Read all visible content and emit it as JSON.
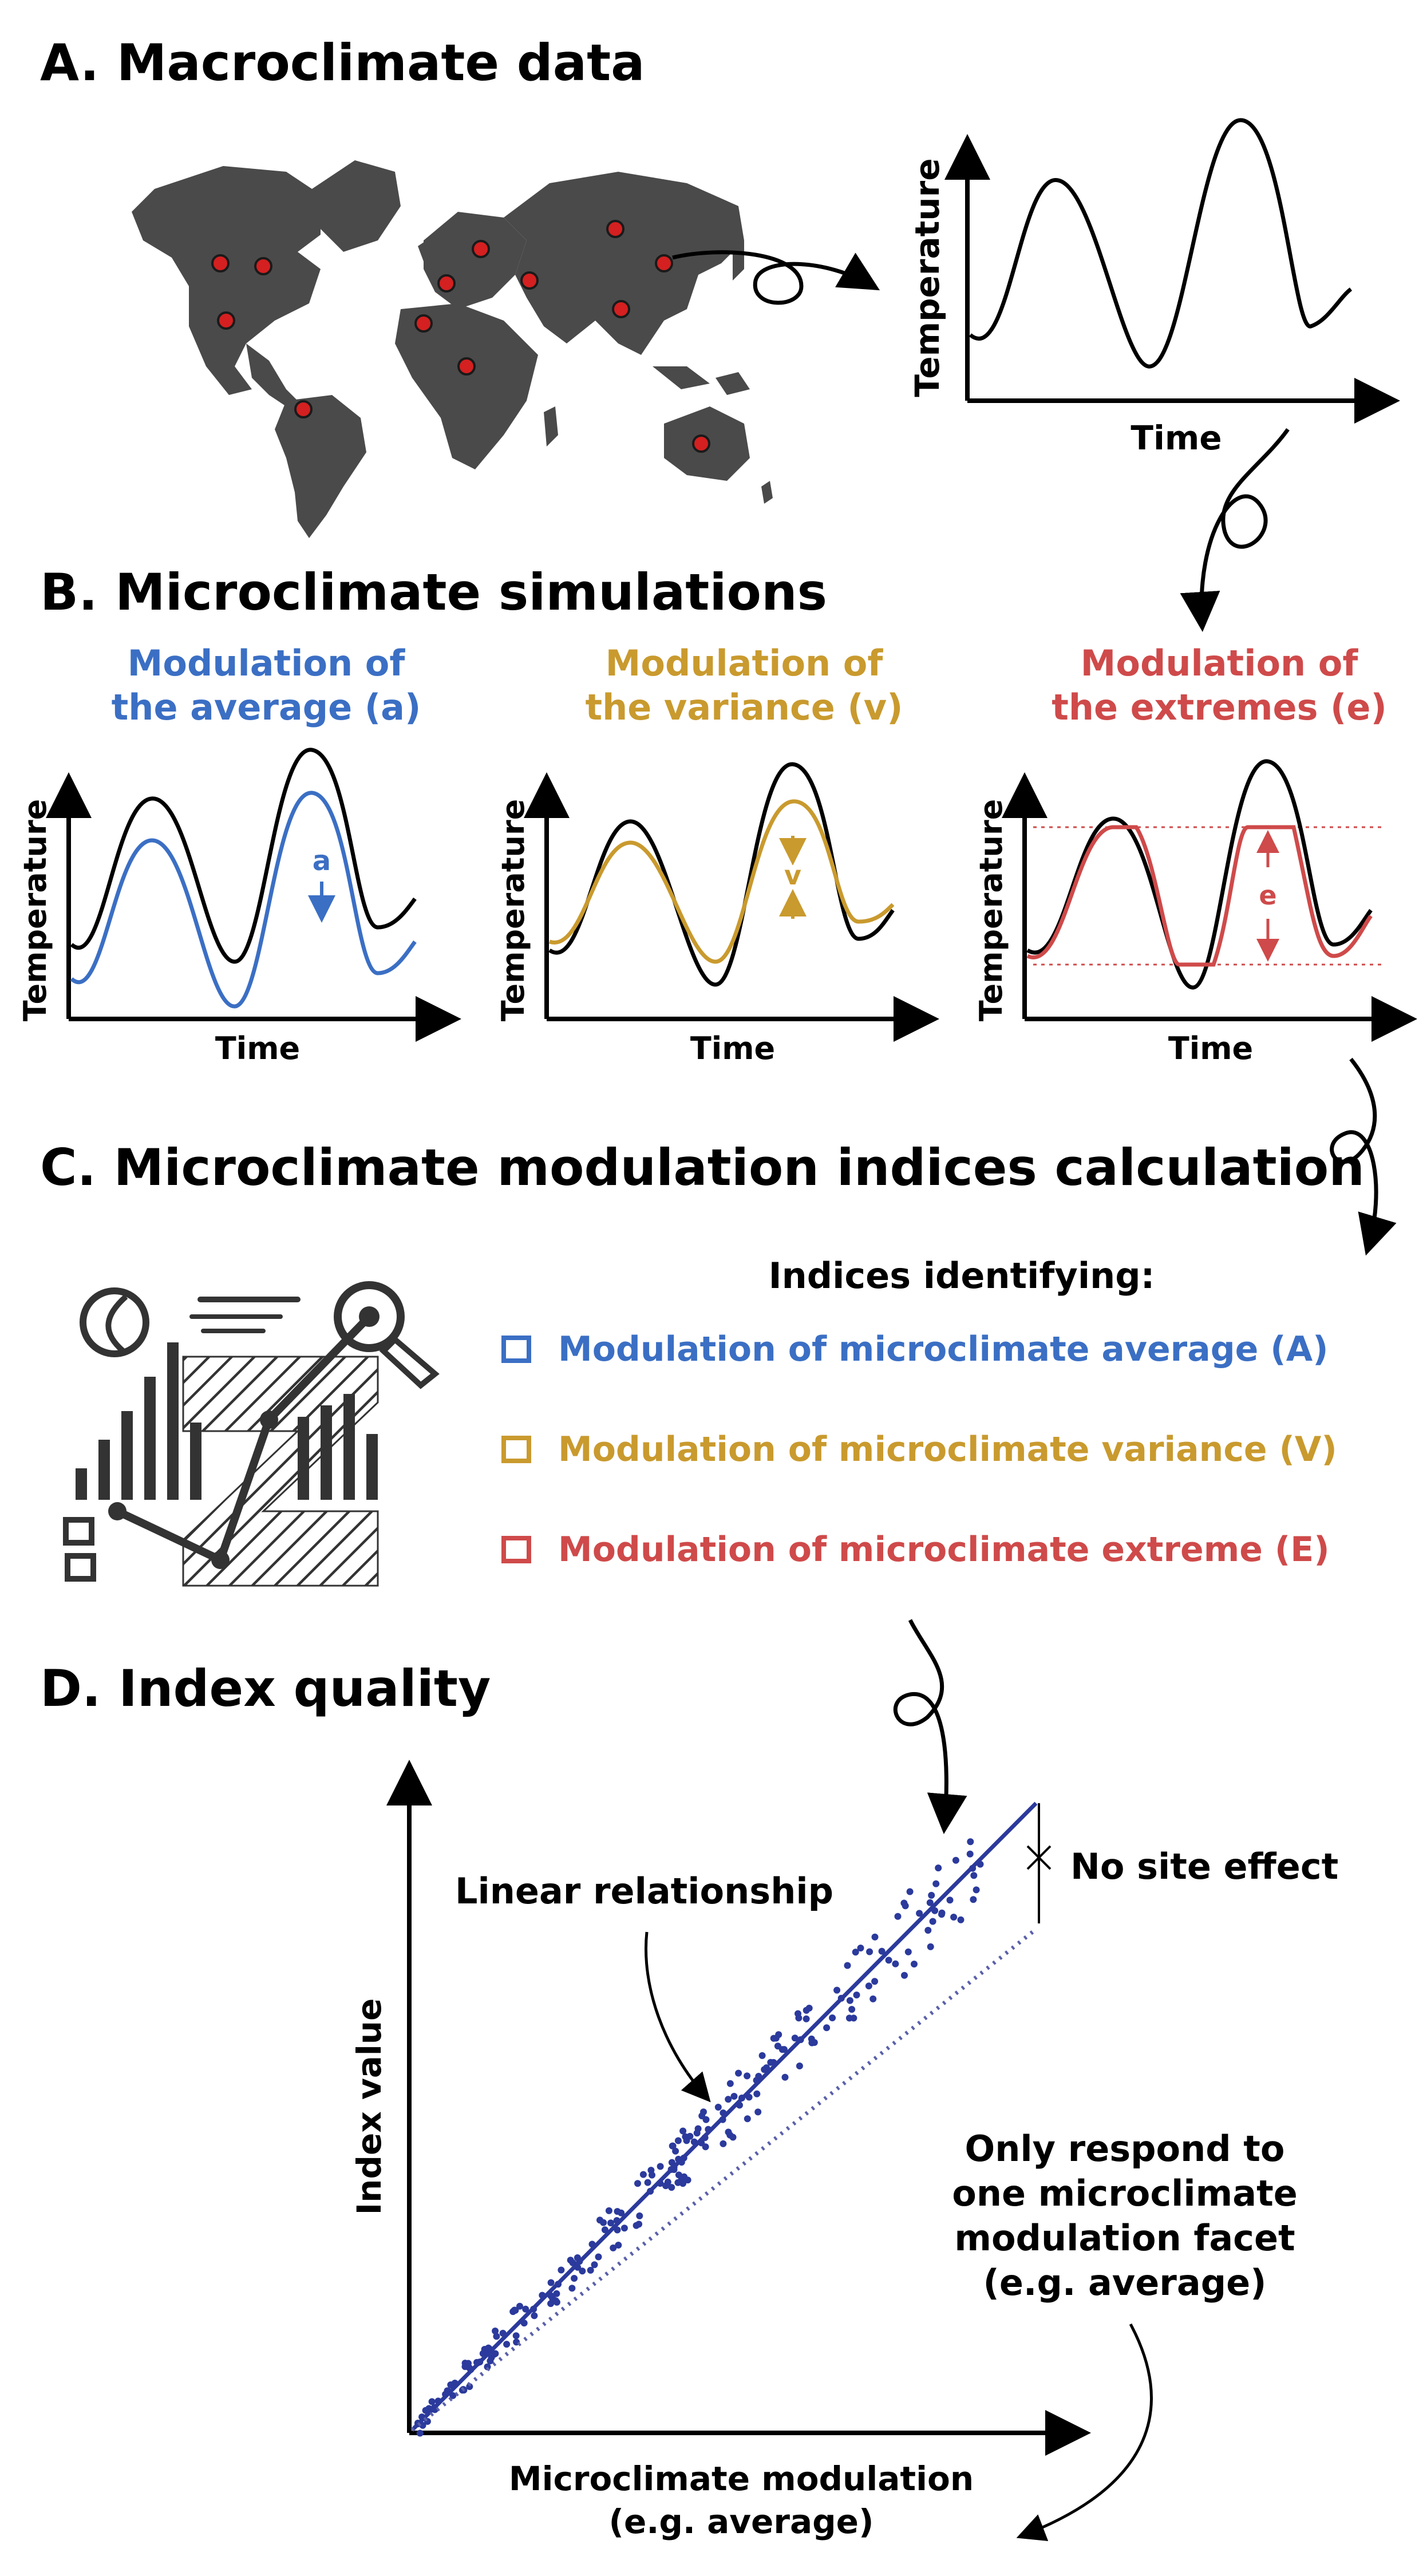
{
  "colors": {
    "average": "#3b6fc4",
    "variance": "#c99a2e",
    "extremes": "#cf4a4a",
    "scatter": "#2b3a9c",
    "map": "#4a4a4a",
    "site_dot": "#d42020"
  },
  "section_a": {
    "title": "A. Macroclimate data",
    "ylabel": "Temperature",
    "xlabel": "Time"
  },
  "section_b": {
    "title": "B. Microclimate simulations",
    "panels": [
      {
        "line1": "Modulation of",
        "line2": "the average (a)",
        "symbol": "a",
        "ylabel": "Temperature",
        "xlabel": "Time"
      },
      {
        "line1": "Modulation of",
        "line2": "the variance (v)",
        "symbol": "v",
        "ylabel": "Temperature",
        "xlabel": "Time"
      },
      {
        "line1": "Modulation of",
        "line2": "the extremes (e)",
        "symbol": "e",
        "ylabel": "Temperature",
        "xlabel": "Time"
      }
    ]
  },
  "section_c": {
    "title": "C. Microclimate modulation indices calculation",
    "header": "Indices identifying:",
    "items": [
      "Modulation of microclimate average (A)",
      "Modulation of microclimate variance (V)",
      "Modulation of microclimate extreme (E)"
    ]
  },
  "section_d": {
    "title": "D. Index quality",
    "ylabel": "Index value",
    "xlabel_line1": "Microclimate modulation",
    "xlabel_line2": "(e.g. average)",
    "annotation_linear": "Linear relationship",
    "annotation_site": "No site effect",
    "annotation_facet": [
      "Only respond to",
      "one microclimate",
      "modulation facet",
      "(e.g. average)"
    ]
  }
}
